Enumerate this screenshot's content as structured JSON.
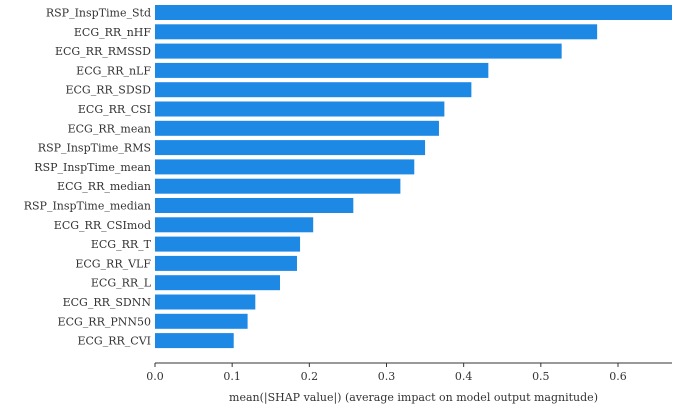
{
  "chart_data": {
    "type": "bar",
    "orientation": "horizontal",
    "xlabel": "mean(|SHAP value|) (average impact on model output magnitude)",
    "ylabel": "",
    "title": "",
    "xlim": [
      0.0,
      0.67
    ],
    "xticks": [
      "0.0",
      "0.1",
      "0.2",
      "0.3",
      "0.4",
      "0.5",
      "0.6"
    ],
    "xtick_values": [
      0.0,
      0.1,
      0.2,
      0.3,
      0.4,
      0.5,
      0.6
    ],
    "bar_color": "#1e88e5",
    "grid": false,
    "categories": [
      "RSP_InspTime_Std",
      "ECG_RR_nHF",
      "ECG_RR_RMSSD",
      "ECG_RR_nLF",
      "ECG_RR_SDSD",
      "ECG_RR_CSI",
      "ECG_RR_mean",
      "RSP_InspTime_RMS",
      "RSP_InspTime_mean",
      "ECG_RR_median",
      "RSP_InspTime_median",
      "ECG_RR_CSImod",
      "ECG_RR_T",
      "ECG_RR_VLF",
      "ECG_RR_L",
      "ECG_RR_SDNN",
      "ECG_RR_PNN50",
      "ECG_RR_CVI"
    ],
    "values": [
      0.67,
      0.573,
      0.527,
      0.432,
      0.41,
      0.375,
      0.368,
      0.35,
      0.336,
      0.318,
      0.257,
      0.205,
      0.188,
      0.184,
      0.162,
      0.13,
      0.12,
      0.102
    ]
  }
}
